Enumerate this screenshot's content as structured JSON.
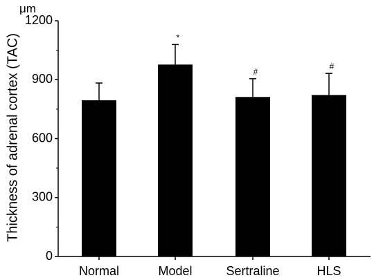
{
  "chart_data": {
    "type": "bar",
    "title": "",
    "xlabel": "",
    "ylabel": "Thickness of adrenal cortex (TAC)",
    "unit": "μm",
    "categories": [
      "Normal",
      "Model",
      "Sertraline",
      "HLS"
    ],
    "values": [
      795,
      977,
      812,
      822
    ],
    "errors": [
      88,
      102,
      93,
      110
    ],
    "annotations": [
      "",
      "*",
      "#",
      "#"
    ],
    "ylim": [
      0,
      1200
    ],
    "yticks": [
      0,
      300,
      600,
      900,
      1200
    ],
    "grid": false,
    "bar_color": "#000000"
  }
}
